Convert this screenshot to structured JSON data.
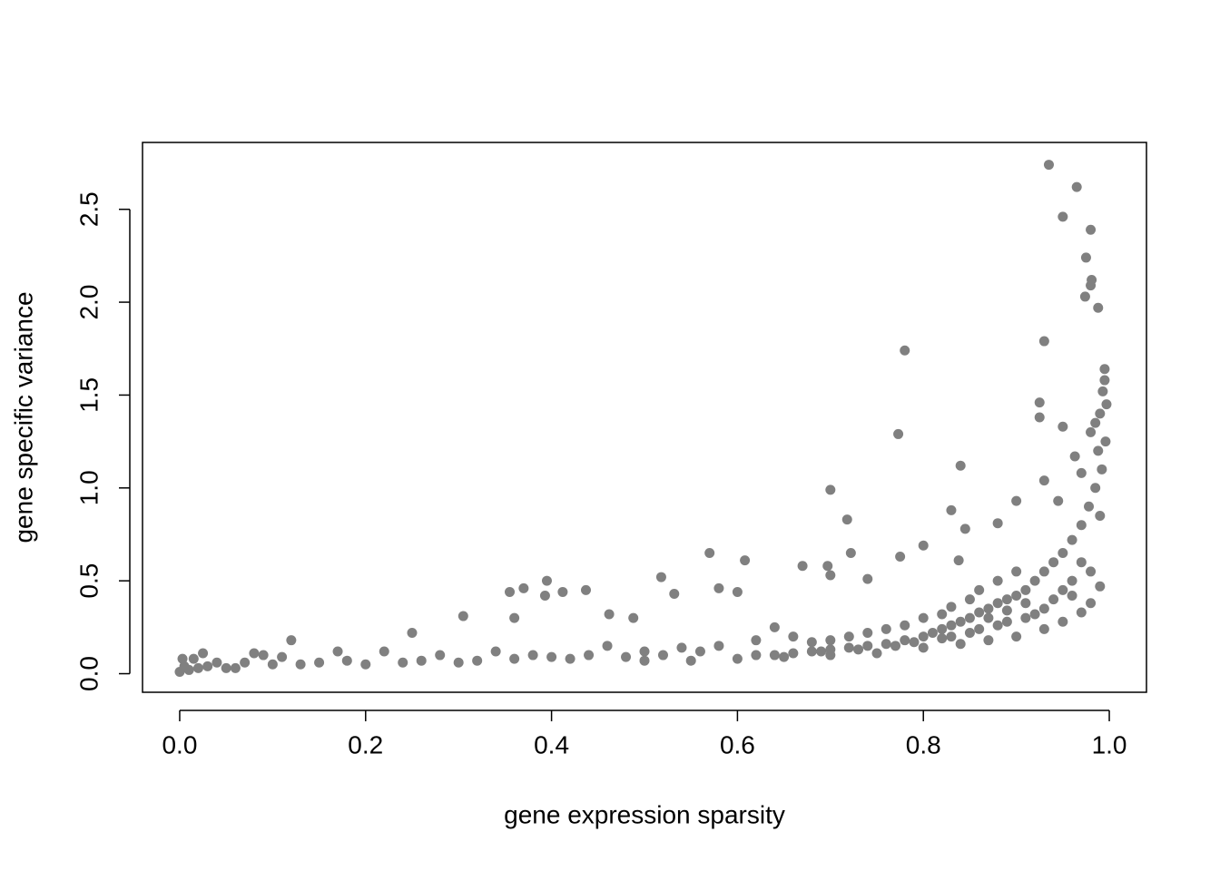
{
  "chart_data": {
    "type": "scatter",
    "x_label": "gene expression sparsity",
    "y_label": "gene specific variance",
    "color": "#808080",
    "xlim": [
      -0.04,
      1.04
    ],
    "ylim": [
      -0.1,
      2.86
    ],
    "xticks": [
      {
        "value": 0,
        "label": "0.0"
      },
      0.2,
      0.4,
      0.6,
      0.8,
      {
        "value": 1,
        "label": "1.0"
      }
    ],
    "yticks": [
      {
        "value": 0,
        "label": "0.0"
      },
      0.5,
      {
        "value": 1,
        "label": "1.0"
      },
      1.5,
      {
        "value": 2,
        "label": "2.0"
      },
      2.5
    ],
    "x": [
      0.935,
      0.965,
      0.95,
      0.98,
      0.975,
      0.981,
      0.98,
      0.974,
      0.988,
      0.93,
      0.78,
      0.925,
      0.925,
      0.95,
      0.773,
      0.963,
      0.84,
      0.93,
      0.97,
      0.7,
      0.9,
      0.945,
      0.83,
      0.718,
      0.88,
      0.845,
      0.775,
      0.57,
      0.608,
      0.722,
      0.8,
      0.838,
      0.67,
      0.697,
      0.395,
      0.518,
      0.7,
      0.74,
      0.355,
      0.37,
      0.393,
      0.412,
      0.437,
      0.532,
      0.58,
      0.6,
      0.36,
      0.305,
      0.462,
      0.488,
      0.995,
      0.995,
      0.993,
      0.997,
      0.99,
      0.985,
      0.98,
      0.996,
      0.988,
      0.992,
      0.985,
      0.978,
      0.99,
      0.97,
      0.96,
      0.95,
      0.94,
      0.93,
      0.92,
      0.91,
      0.9,
      0.89,
      0.88,
      0.87,
      0.86,
      0.85,
      0.84,
      0.83,
      0.82,
      0.81,
      0.8,
      0.78,
      0.76,
      0.74,
      0.72,
      0.7,
      0.68,
      0.66,
      0.64,
      0.62,
      0.99,
      0.98,
      0.97,
      0.95,
      0.93,
      0.9,
      0.87,
      0.84,
      0.8,
      0.75,
      0.7,
      0.65,
      0.6,
      0.55,
      0.5,
      0.96,
      0.95,
      0.94,
      0.93,
      0.92,
      0.91,
      0.97,
      0.98,
      0.96,
      0.89,
      0.88,
      0.86,
      0.85,
      0.83,
      0.82,
      0.79,
      0.77,
      0.73,
      0.69,
      0.91,
      0.89,
      0.87,
      0.9,
      0.88,
      0.86,
      0.85,
      0.83,
      0.82,
      0.8,
      0.78,
      0.76,
      0.74,
      0.72,
      0.7,
      0.68,
      0.66,
      0.64,
      0.62,
      0.58,
      0.56,
      0.54,
      0.52,
      0.5,
      0.48,
      0.46,
      0.44,
      0.42,
      0.4,
      0.38,
      0.36,
      0.34,
      0.32,
      0.3,
      0.28,
      0.26,
      0.25,
      0.24,
      0.22,
      0.2,
      0.18,
      0.17,
      0.15,
      0.13,
      0.12,
      0.11,
      0.1,
      0.09,
      0.08,
      0.07,
      0.06,
      0.05,
      0.04,
      0.03,
      0.025,
      0.02,
      0.015,
      0.01,
      0.005,
      0.0,
      0.003
    ],
    "values": [
      2.74,
      2.62,
      2.46,
      2.39,
      2.24,
      2.12,
      2.09,
      2.03,
      1.97,
      1.79,
      1.74,
      1.46,
      1.38,
      1.33,
      1.29,
      1.17,
      1.12,
      1.04,
      1.08,
      0.99,
      0.93,
      0.93,
      0.88,
      0.83,
      0.81,
      0.78,
      0.63,
      0.65,
      0.61,
      0.65,
      0.69,
      0.61,
      0.58,
      0.58,
      0.5,
      0.52,
      0.53,
      0.51,
      0.44,
      0.46,
      0.42,
      0.44,
      0.45,
      0.43,
      0.46,
      0.44,
      0.3,
      0.31,
      0.32,
      0.3,
      1.64,
      1.58,
      1.52,
      1.45,
      1.4,
      1.35,
      1.3,
      1.25,
      1.2,
      1.1,
      1.0,
      0.9,
      0.85,
      0.8,
      0.72,
      0.65,
      0.6,
      0.55,
      0.5,
      0.45,
      0.42,
      0.4,
      0.38,
      0.35,
      0.33,
      0.3,
      0.28,
      0.26,
      0.24,
      0.22,
      0.2,
      0.18,
      0.16,
      0.15,
      0.14,
      0.13,
      0.12,
      0.11,
      0.1,
      0.1,
      0.47,
      0.38,
      0.33,
      0.28,
      0.24,
      0.2,
      0.18,
      0.16,
      0.14,
      0.11,
      0.1,
      0.09,
      0.08,
      0.07,
      0.07,
      0.5,
      0.45,
      0.4,
      0.35,
      0.32,
      0.3,
      0.6,
      0.55,
      0.42,
      0.28,
      0.26,
      0.24,
      0.22,
      0.2,
      0.19,
      0.17,
      0.15,
      0.13,
      0.12,
      0.38,
      0.34,
      0.3,
      0.55,
      0.5,
      0.45,
      0.4,
      0.36,
      0.32,
      0.3,
      0.26,
      0.24,
      0.22,
      0.2,
      0.18,
      0.17,
      0.2,
      0.25,
      0.18,
      0.15,
      0.12,
      0.14,
      0.1,
      0.12,
      0.09,
      0.15,
      0.1,
      0.08,
      0.09,
      0.1,
      0.08,
      0.12,
      0.07,
      0.06,
      0.1,
      0.07,
      0.22,
      0.06,
      0.12,
      0.05,
      0.07,
      0.12,
      0.06,
      0.05,
      0.18,
      0.09,
      0.05,
      0.1,
      0.11,
      0.06,
      0.03,
      0.03,
      0.06,
      0.04,
      0.11,
      0.03,
      0.08,
      0.02,
      0.04,
      0.01,
      0.08
    ]
  }
}
